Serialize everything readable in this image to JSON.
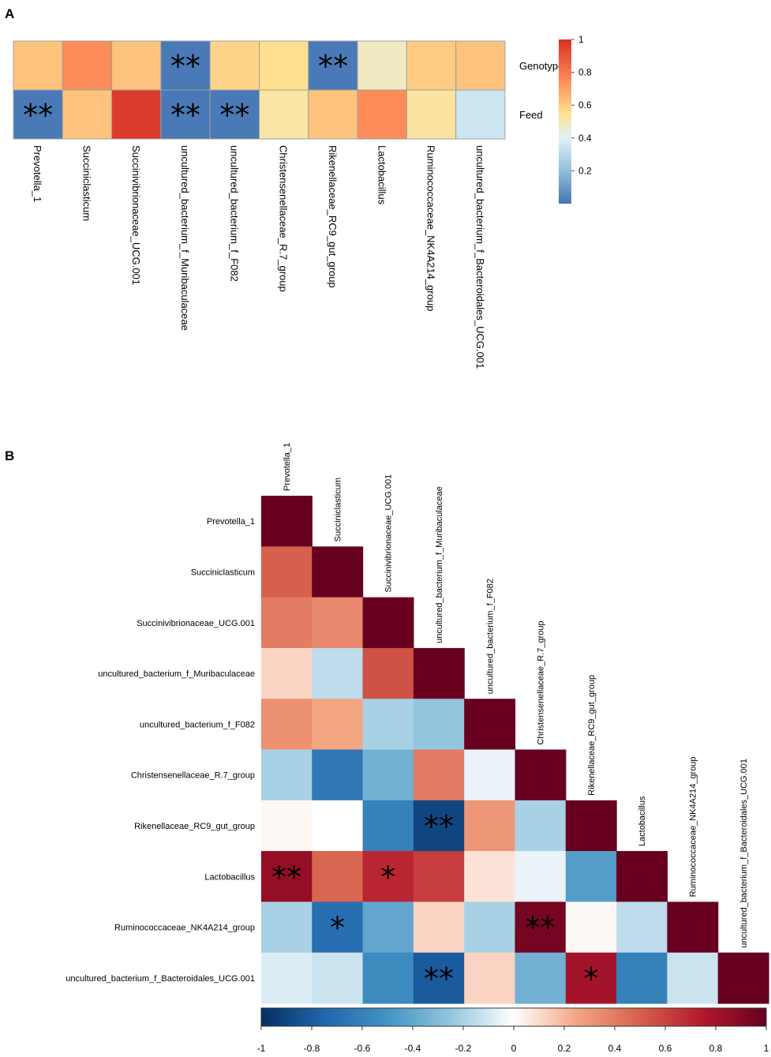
{
  "panel_labels": [
    "A",
    "B"
  ],
  "chart_data": [
    {
      "type": "heatmap",
      "panel": "A",
      "title": "",
      "rows": [
        "Genotype",
        "Feed"
      ],
      "columns": [
        "Prevotella_1",
        "Succiniclasticum",
        "Succinivibrionaceae_UCG.001",
        "uncultured_bacterium_f_Muribaculaceae",
        "uncultured_bacterium_f_F082",
        "Christensenellaceae_R.7_group",
        "Rikenellaceae_RC9_gut_group",
        "Lactobacillus",
        "Ruminococcaceae_NK4A214_group",
        "uncultured_bacterium_f_Bacteroidales_UCG.001"
      ],
      "values": [
        [
          0.62,
          0.75,
          0.62,
          0.01,
          0.58,
          0.55,
          0.01,
          0.48,
          0.6,
          0.62
        ],
        [
          0.01,
          0.62,
          0.97,
          0.01,
          0.01,
          0.52,
          0.62,
          0.75,
          0.53,
          0.35
        ]
      ],
      "annotations": [
        [
          "",
          "",
          "",
          "**",
          "",
          "",
          "**",
          "",
          "",
          ""
        ],
        [
          "**",
          "",
          "",
          "**",
          "**",
          "",
          "",
          "",
          "",
          ""
        ]
      ],
      "colorbar": {
        "range": [
          0,
          1
        ],
        "ticks": [
          "1",
          "0.8",
          "0.6",
          "0.4",
          "0.2"
        ],
        "tick_values": [
          1,
          0.8,
          0.6,
          0.4,
          0.2
        ]
      }
    },
    {
      "type": "heatmap",
      "panel": "B",
      "title": "",
      "variables": [
        "Prevotella_1",
        "Succiniclasticum",
        "Succinivibrionaceae_UCG.001",
        "uncultured_bacterium_f_Muribaculaceae",
        "uncultured_bacterium_f_F082",
        "Christensenellaceae_R.7_group",
        "Rikenellaceae_RC9_gut_group",
        "Lactobacillus",
        "Ruminococcaceae_NK4A214_group",
        "uncultured_bacterium_f_Bacteroidales_UCG.001"
      ],
      "correlations": [
        [
          1
        ],
        [
          0.5,
          1
        ],
        [
          0.4,
          0.35,
          1
        ],
        [
          0.12,
          -0.15,
          0.55,
          1
        ],
        [
          0.32,
          0.25,
          -0.2,
          -0.25,
          1
        ],
        [
          -0.2,
          -0.65,
          -0.35,
          0.4,
          -0.05,
          1
        ],
        [
          0.02,
          0.0,
          -0.6,
          -0.9,
          0.3,
          -0.2,
          1
        ],
        [
          0.85,
          0.48,
          0.7,
          0.62,
          0.08,
          -0.05,
          -0.45,
          1
        ],
        [
          -0.2,
          -0.7,
          -0.4,
          0.12,
          -0.2,
          0.95,
          0.02,
          -0.15,
          1
        ],
        [
          -0.08,
          -0.12,
          -0.55,
          -0.8,
          0.12,
          -0.35,
          0.8,
          -0.6,
          -0.12,
          1
        ]
      ],
      "annotations": [
        [
          ""
        ],
        [
          "",
          ""
        ],
        [
          "",
          "",
          ""
        ],
        [
          "",
          "",
          "",
          ""
        ],
        [
          "",
          "",
          "",
          "",
          ""
        ],
        [
          "",
          "",
          "",
          "",
          "",
          ""
        ],
        [
          "",
          "",
          "",
          "**",
          "",
          "",
          ""
        ],
        [
          "**",
          "",
          "*",
          "",
          "",
          "",
          "",
          ""
        ],
        [
          "",
          "*",
          "",
          "",
          "",
          "**",
          "",
          "",
          ""
        ],
        [
          "",
          "",
          "",
          "**",
          "",
          "",
          "*",
          "",
          "",
          ""
        ]
      ],
      "colorbar": {
        "range": [
          -1,
          1
        ],
        "ticks": [
          "-1",
          "-0.8",
          "-0.6",
          "-0.4",
          "-0.2",
          "0",
          "0.2",
          "0.4",
          "0.6",
          "0.8",
          "1"
        ],
        "tick_values": [
          -1,
          -0.8,
          -0.6,
          -0.4,
          -0.2,
          0,
          0.2,
          0.4,
          0.6,
          0.8,
          1
        ]
      }
    }
  ]
}
